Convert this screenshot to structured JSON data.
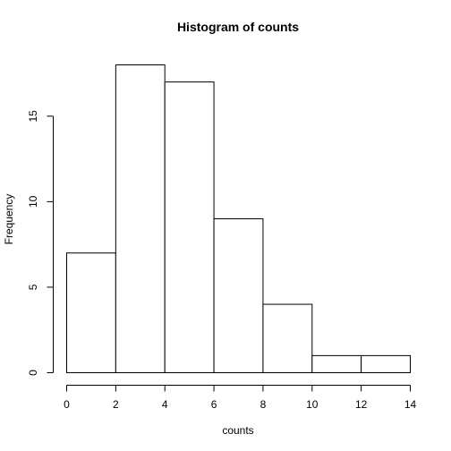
{
  "chart_data": {
    "type": "bar",
    "title": "Histogram of counts",
    "xlabel": "counts",
    "ylabel": "Frequency",
    "bins": [
      {
        "from": 0,
        "to": 2,
        "count": 7
      },
      {
        "from": 2,
        "to": 4,
        "count": 18
      },
      {
        "from": 4,
        "to": 6,
        "count": 17
      },
      {
        "from": 6,
        "to": 8,
        "count": 9
      },
      {
        "from": 8,
        "to": 10,
        "count": 4
      },
      {
        "from": 10,
        "to": 12,
        "count": 1
      },
      {
        "from": 12,
        "to": 14,
        "count": 1
      }
    ],
    "xlim": [
      0,
      14
    ],
    "ylim": [
      0,
      18
    ],
    "x_ticks": [
      0,
      2,
      4,
      6,
      8,
      10,
      12,
      14
    ],
    "y_ticks": [
      0,
      5,
      10,
      15
    ],
    "grid": false,
    "legend": "none",
    "colors": {
      "bar_fill": "#ffffff",
      "bar_stroke": "#000000"
    }
  }
}
